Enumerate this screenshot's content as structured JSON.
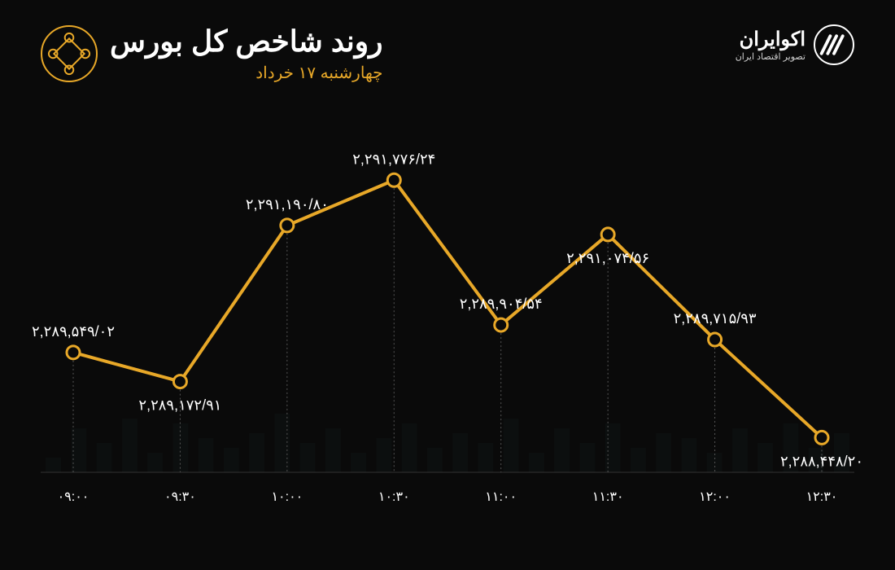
{
  "header": {
    "title": "روند شاخص کل بورس",
    "subtitle": "چهارشنبه ۱۷ خرداد",
    "brand_name": "اکوایران",
    "brand_tag": "تصویر اقتصاد ایران"
  },
  "chart": {
    "type": "line",
    "background_color": "#0a0a0a",
    "series_color": "#e8a828",
    "marker_fill": "#0a0a0a",
    "marker_stroke": "#e8a828",
    "marker_radius": 8,
    "line_width": 4,
    "grid_color": "#555555",
    "text_color": "#ffffff",
    "bg_bars_color": "#1f3b3b",
    "x_labels": [
      "۰۹:۰۰",
      "۰۹:۳۰",
      "۱۰:۰۰",
      "۱۰:۳۰",
      "۱۱:۰۰",
      "۱۱:۳۰",
      "۱۲:۰۰",
      "۱۲:۳۰"
    ],
    "value_labels": [
      "۲,۲۸۹,۵۴۹/۰۲",
      "۲,۲۸۹,۱۷۲/۹۱",
      "۲,۲۹۱,۱۹۰/۸۰",
      "۲,۲۹۱,۷۷۶/۲۴",
      "۲,۲۸۹,۹۰۴/۵۴",
      "۲,۲۹۱,۰۷۴/۵۶",
      "۲,۲۸۹,۷۱۵/۹۳",
      "۲,۲۸۸,۴۴۸/۲۰"
    ],
    "values": [
      2289549.02,
      2289172.91,
      2291190.8,
      2291776.24,
      2289904.54,
      2291074.56,
      2289715.93,
      2288448.2
    ],
    "ylim": [
      2288000,
      2292000
    ],
    "label_pos": [
      "above",
      "below",
      "above",
      "above",
      "above",
      "below",
      "above",
      "below"
    ],
    "bg_bar_heights": [
      0.15,
      0.45,
      0.3,
      0.55,
      0.2,
      0.5,
      0.35,
      0.25,
      0.4,
      0.6,
      0.3,
      0.45,
      0.2,
      0.35,
      0.5,
      0.25,
      0.4,
      0.3,
      0.55,
      0.2,
      0.45,
      0.3,
      0.5,
      0.25,
      0.4,
      0.35,
      0.2,
      0.45,
      0.3,
      0.5,
      0.25,
      0.4
    ]
  }
}
